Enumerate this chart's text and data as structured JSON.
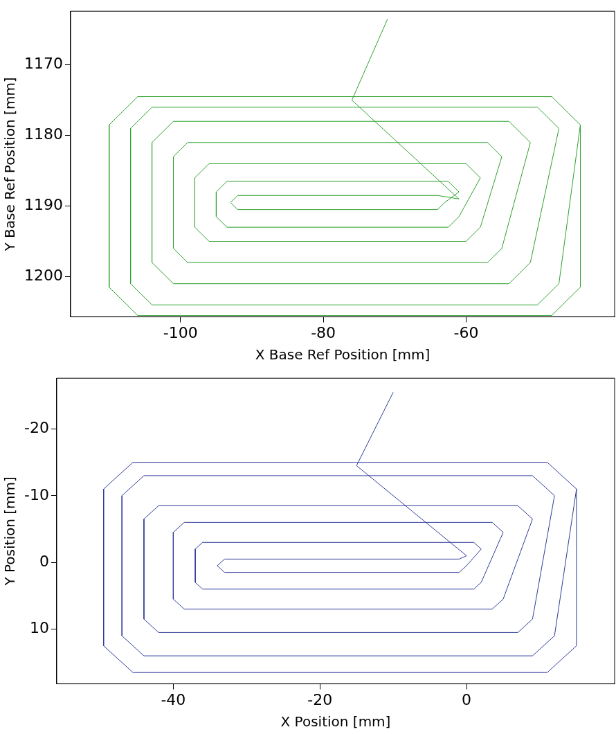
{
  "chart_data": [
    {
      "type": "line",
      "xlabel": "X Base Ref Position [mm]",
      "ylabel": "Y Base Ref Position [mm]",
      "xlim": [
        -115.4,
        -39.2
      ],
      "ylim": [
        1205.7,
        1162.4
      ],
      "xticks": [
        -100,
        -80,
        -60
      ],
      "yticks": [
        1170,
        1180,
        1190,
        1200
      ],
      "series": [
        {
          "color": "#2ca02c",
          "x": [
            -71,
            -76,
            -61,
            -64,
            -92,
            -93,
            -92,
            -64,
            -63,
            -61,
            -62.5,
            -93.5,
            -95,
            -95,
            -93.5,
            -62.5,
            -61,
            -58,
            -60,
            -96,
            -98,
            -98,
            -96,
            -60,
            -58,
            -55,
            -57,
            -99,
            -101,
            -101,
            -99,
            -57,
            -55,
            -51,
            -54,
            -101,
            -104,
            -104,
            -101,
            -54,
            -51,
            -47,
            -50,
            -104,
            -107,
            -107,
            -104,
            -50,
            -47,
            -44,
            -48,
            -106,
            -110,
            -110,
            -106,
            -48,
            -44,
            -44
          ],
          "values": [
            1163.5,
            1175,
            1189,
            1188.5,
            1188.5,
            1189.5,
            1190.5,
            1190.5,
            1189.5,
            1188,
            1186.5,
            1186.5,
            1188,
            1191.5,
            1193,
            1193,
            1191.5,
            1186,
            1184,
            1184,
            1186,
            1193,
            1195,
            1195,
            1193,
            1183,
            1181,
            1181,
            1183,
            1196,
            1198,
            1198,
            1196,
            1181,
            1178,
            1178,
            1181,
            1198,
            1201,
            1201,
            1198,
            1179,
            1176,
            1176,
            1179,
            1201,
            1204,
            1204,
            1201,
            1178.5,
            1174.5,
            1174.5,
            1178.5,
            1201.5,
            1205.5,
            1205.5,
            1201.5,
            1178.5
          ]
        }
      ]
    },
    {
      "type": "line",
      "xlabel": "X Position [mm]",
      "ylabel": "Y Position [mm]",
      "xlim": [
        -55.9,
        20.2
      ],
      "ylim": [
        18.2,
        -27.6
      ],
      "xticks": [
        -40,
        -20,
        0
      ],
      "yticks": [
        -20,
        -10,
        0,
        10
      ],
      "series": [
        {
          "color": "#2e3a9a",
          "x": [
            -10,
            -15,
            0,
            -1,
            -33,
            -34,
            -33,
            -1,
            0,
            2,
            1,
            -36,
            -37,
            -37,
            -36,
            1,
            2,
            5,
            3.5,
            -38.5,
            -40,
            -40,
            -38.5,
            3.5,
            5,
            9,
            7,
            -42,
            -44,
            -44,
            -42,
            7,
            9,
            12,
            9,
            -44,
            -47,
            -47,
            -44,
            9,
            12,
            15,
            11,
            -45.5,
            -49.5,
            -49.5,
            -45.5,
            11,
            15,
            15
          ],
          "values": [
            -25.5,
            -14.5,
            -1,
            -0.5,
            -0.5,
            0.5,
            1.5,
            1.5,
            0.5,
            -2,
            -3,
            -3,
            -2,
            3,
            4,
            4,
            3,
            -4.5,
            -6,
            -6,
            -4.5,
            5.5,
            7,
            7,
            5.5,
            -6.5,
            -8.5,
            -8.5,
            -6.5,
            8.5,
            10.5,
            10.5,
            8.5,
            -10,
            -13,
            -13,
            -10,
            11,
            14,
            14,
            11,
            -11,
            -15,
            -15,
            -11,
            12.5,
            16.5,
            16.5,
            12.5,
            -11
          ]
        }
      ]
    }
  ]
}
